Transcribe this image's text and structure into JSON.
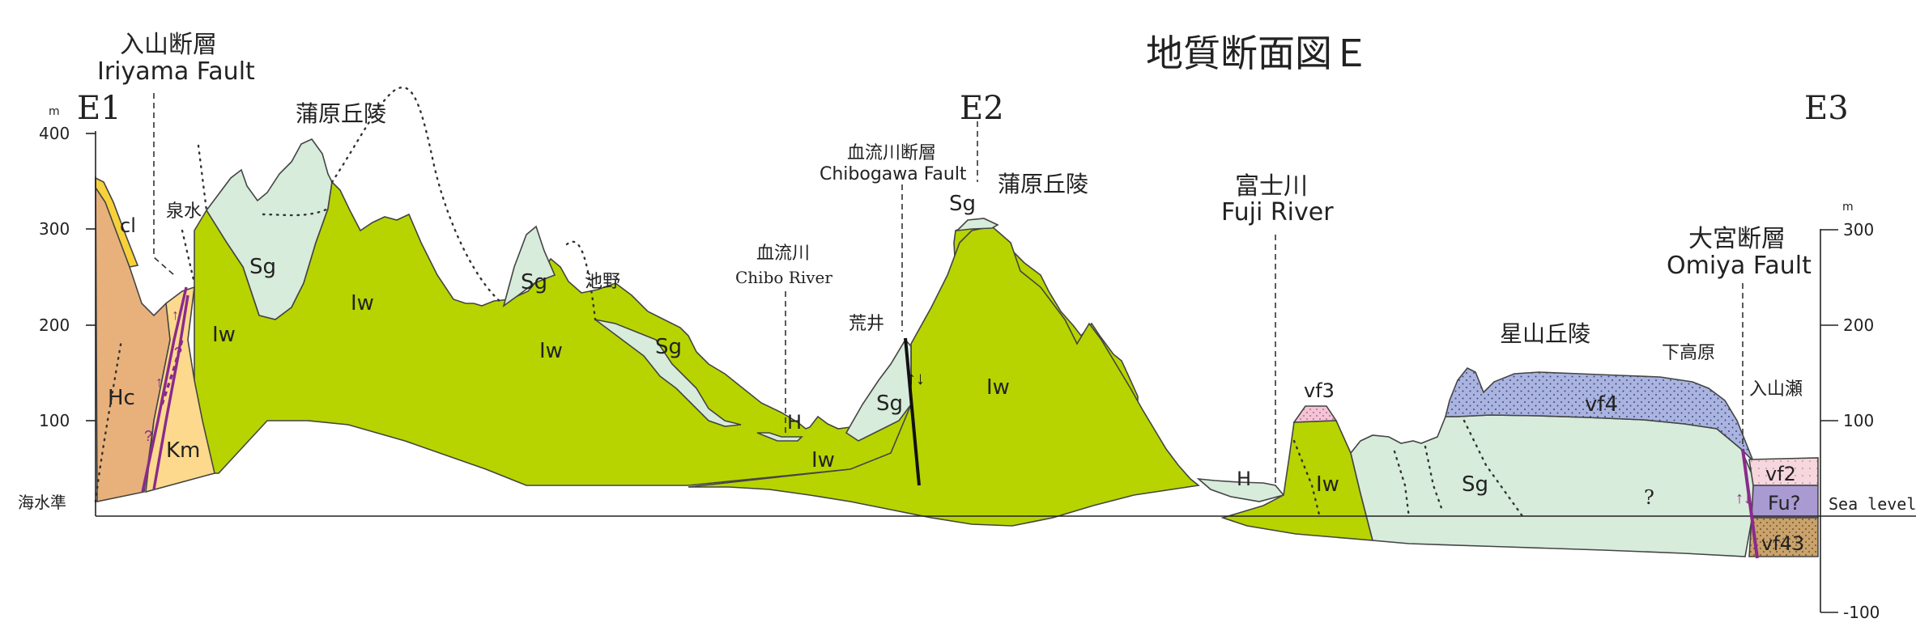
{
  "title": "地質断面図Ｅ",
  "stations": {
    "e1": "E1",
    "e2": "E2",
    "e3": "E3"
  },
  "axis_left": {
    "unit": "m",
    "ticks": [
      "400",
      "300",
      "200",
      "100"
    ],
    "zero_label": "海水準"
  },
  "axis_right": {
    "unit": "m",
    "ticks": [
      "300",
      "200",
      "100",
      "-100"
    ],
    "zero_label": "Sea level"
  },
  "faults": {
    "iriyama_ja": "入山断層",
    "iriyama_en": "Iriyama Fault",
    "chibogawa_ja": "血流川断層",
    "chibogawa_en": "Chibogawa Fault",
    "omiya_ja": "大宮断層",
    "omiya_en": "Omiya Fault"
  },
  "places": {
    "kanbara_hills_1": "蒲原丘陵",
    "kanbara_hills_2": "蒲原丘陵",
    "izumi": "泉水",
    "ikeno": "池野",
    "chibo_ja": "血流川",
    "chibo_en": "Chibo River",
    "arai": "荒井",
    "fuji_ja": "富士川",
    "fuji_en": "Fuji River",
    "hoshiyama": "星山丘陵",
    "shimotakahara": "下高原",
    "iriyamase": "入山瀬"
  },
  "units": {
    "cl": "cl",
    "hc": "Hc",
    "km": "Km",
    "sg1": "Sg",
    "sg2": "Sg",
    "sg3": "Sg",
    "sg4": "Sg",
    "sg5": "Sg",
    "sg6": "Sg",
    "iw1": "Iw",
    "iw2": "Iw",
    "iw3": "Iw",
    "iw4": "Iw",
    "iw5": "Iw",
    "iw6": "Iw",
    "h1": "H",
    "h2": "H",
    "vf3": "vf3",
    "vf4": "vf4",
    "vf2": "vf2",
    "fu": "Fu?",
    "vf43": "vf43",
    "question": "?"
  },
  "colors": {
    "iw": "#b7d400",
    "sg": "#d7ecdb",
    "hc": "#e8b17c",
    "km": "#fcd98c",
    "cl": "#f6d13a",
    "vf4": "#aab4df",
    "vf3": "#f4c4d6",
    "vf2": "#f6d7de",
    "fu": "#a99ad2",
    "vf43": "#c9a26c",
    "fault": "#8a2a8c"
  }
}
